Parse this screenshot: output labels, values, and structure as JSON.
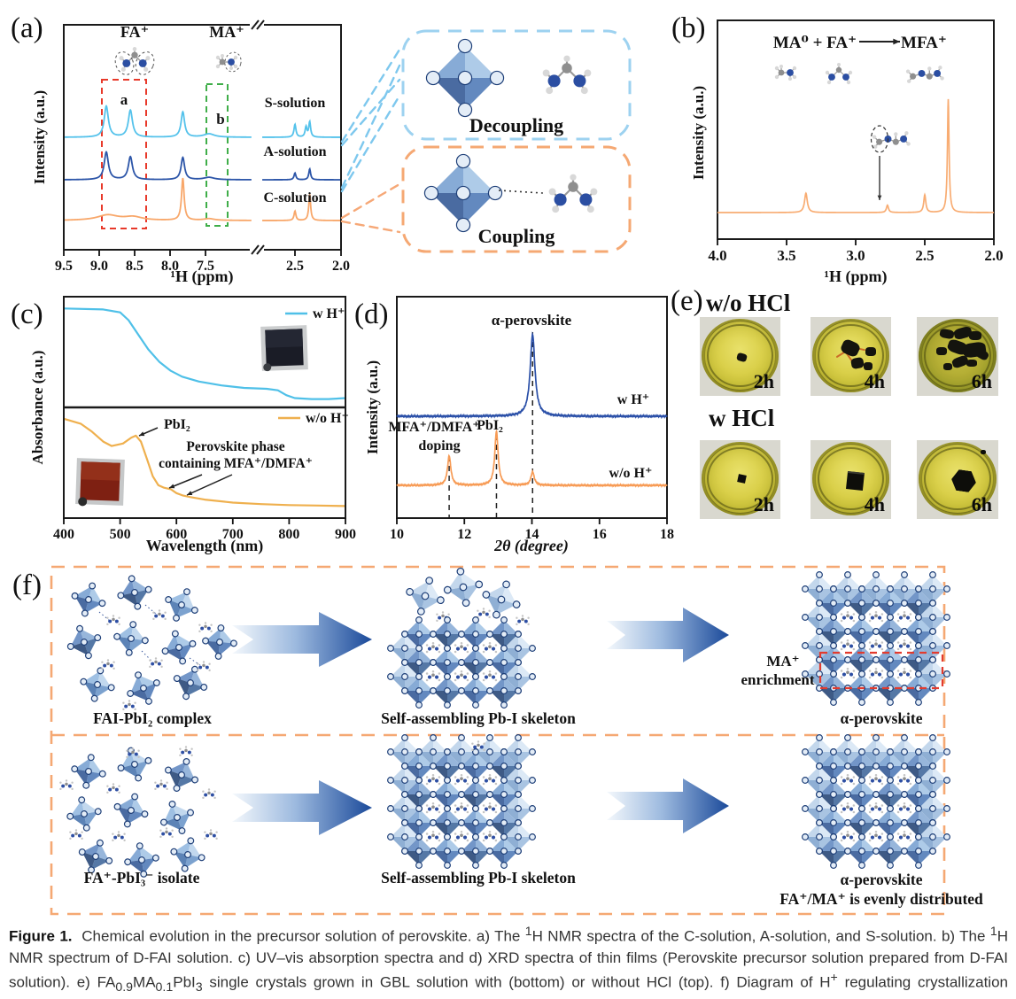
{
  "colors": {
    "s_solution": "#54C2EB",
    "a_solution": "#2C55A8",
    "c_solution": "#F8A76A",
    "nmr_b_trace": "#F8AC72",
    "uv_w_h": "#4FC0E8",
    "uv_wo_h": "#EFB04E",
    "xrd_w_h": "#2B50A8",
    "xrd_wo_h": "#F79B55",
    "decoupling_border": "#9DD2F0",
    "coupling_border": "#F5A873",
    "f_border": "#F5A873",
    "highlight_red": "#E8392A",
    "highlight_green": "#3FAE49",
    "arrow_blue": "#1B4A9A"
  },
  "panel_a": {
    "label": "(a)",
    "ylabel": "Intensity (a.u.)",
    "xlabel": "¹H (ppm)",
    "fa_label": "FA⁺",
    "ma_label": "MA⁺",
    "region_a_label": "a",
    "region_b_label": "b",
    "traces": [
      {
        "name": "S-solution"
      },
      {
        "name": "A-solution"
      },
      {
        "name": "C-solution"
      }
    ]
  },
  "coupling_diagram": {
    "decoupling_label": "Decoupling",
    "coupling_label": "Coupling"
  },
  "panel_b": {
    "label": "(b)",
    "reaction_left": "MA⁰  +  FA⁺",
    "reaction_right": "MFA⁺",
    "ylabel": "Intensity (a.u.)",
    "xlabel": "¹H (ppm)"
  },
  "panel_c": {
    "label": "(c)",
    "ylabel": "Absorbance (a.u.)",
    "xlabel": "Wavelength (nm)",
    "legend_top": "w H⁺",
    "legend_bottom": "w/o H⁺",
    "ann_pbi2": "PbI₂",
    "ann_phase_line1": "Perovskite phase",
    "ann_phase_line2": "containing MFA⁺/DMFA⁺"
  },
  "panel_d": {
    "label": "(d)",
    "ylabel": "Intensity (a.u.)",
    "xlabel": "2θ (degree)",
    "ann_alpha": "α-perovskite",
    "ann_doping_line1": "MFA⁺/DMFA⁺",
    "ann_doping_line2": "doping",
    "ann_pbi2": "PbI₂",
    "trace_top": "w H⁺",
    "trace_bottom": "w/o H⁺"
  },
  "panel_e": {
    "label": "(e)",
    "group_top": "w/o HCl",
    "group_bottom": "w HCl",
    "times": [
      "2h",
      "4h",
      "6h"
    ]
  },
  "panel_f": {
    "label": "(f)",
    "top_row": {
      "stage1": "FAI-PbI₂ complex",
      "stage2": "Self-assembling Pb-I skeleton",
      "stage3": "α-perovskite",
      "annotation_line1": "MA⁺",
      "annotation_line2": "enrichment"
    },
    "bottom_row": {
      "stage1": "FA⁺-PbI₃⁻ isolate",
      "stage2": "Self-assembling Pb-I skeleton",
      "stage3": "α-perovskite",
      "stage3_note": "FA⁺/MA⁺ is evenly distributed"
    }
  },
  "caption": {
    "rich_html": "<b>Figure 1.</b>&nbsp; Chemical evolution in the precursor solution of perovskite. a) The <sup>1</sup>H NMR spectra of the C-solution, A-solution, and S-solution. b) The <sup>1</sup>H NMR spectrum of D-FAI solution. c) UV–vis absorption spectra and d) XRD spectra of thin films (Perovskite precursor solution prepared from D-FAI solution). e) FA<sub>0.9</sub>MA<sub>0.1</sub>PbI<sub>3</sub> single crystals grown in GBL solution with (bottom) or without HCl (top). f) Diagram of H<sup>+</sup> regulating crystallization kinetics of FAMA perovskite."
  },
  "chart_data": [
    {
      "id": "a",
      "type": "line",
      "title": "1H NMR spectra of C/A/S solutions",
      "xlabel": "¹H (ppm)",
      "ylabel": "Intensity (a.u.)",
      "x_axis": {
        "segments": [
          [
            9.5,
            6.85
          ],
          [
            2.855,
            2.0
          ]
        ],
        "break": true
      },
      "xticks_left": [
        "9.5",
        "9.0",
        "8.5",
        "8.0",
        "7.5"
      ],
      "xticks_left_vals": [
        9.5,
        9.0,
        8.5,
        8.0,
        7.5
      ],
      "xticks_right": [
        "2.5",
        "2.0"
      ],
      "xticks_right_vals": [
        2.5,
        2.0
      ],
      "series": [
        {
          "name": "S-solution",
          "color": "#54C2EB",
          "peaks": [
            [
              8.9,
              0.92,
              0.035
            ],
            [
              8.56,
              0.8,
              0.035
            ],
            [
              7.82,
              0.75,
              0.03
            ],
            [
              7.45,
              0.1,
              0.09
            ],
            [
              2.5,
              0.38,
              0.013
            ],
            [
              2.38,
              0.3,
              0.012
            ],
            [
              2.34,
              0.45,
              0.012
            ]
          ]
        },
        {
          "name": "A-solution",
          "color": "#2C55A8",
          "peaks": [
            [
              8.9,
              0.82,
              0.035
            ],
            [
              8.56,
              0.68,
              0.035
            ],
            [
              7.82,
              0.66,
              0.03
            ],
            [
              7.45,
              0.07,
              0.09
            ],
            [
              2.5,
              0.2,
              0.012
            ],
            [
              2.34,
              0.32,
              0.012
            ]
          ]
        },
        {
          "name": "C-solution",
          "color": "#F8A76A",
          "peaks": [
            [
              8.88,
              0.16,
              0.18
            ],
            [
              8.52,
              0.1,
              0.15
            ],
            [
              7.82,
              1.25,
              0.022
            ],
            [
              7.45,
              0.05,
              0.09
            ],
            [
              2.5,
              0.28,
              0.012
            ],
            [
              2.34,
              0.78,
              0.012
            ]
          ]
        }
      ]
    },
    {
      "id": "b",
      "type": "line",
      "title": "1H NMR spectrum of D-FAI solution",
      "xlabel": "¹H (ppm)",
      "ylabel": "Intensity (a.u.)",
      "xticks": [
        "4.0",
        "3.5",
        "3.0",
        "2.5",
        "2.0"
      ],
      "xticks_vals": [
        4.0,
        3.5,
        3.0,
        2.5,
        2.0
      ],
      "series": [
        {
          "name": "D-FAI",
          "color": "#F8AC72",
          "peaks": [
            [
              3.36,
              0.17,
              0.012
            ],
            [
              2.77,
              0.065,
              0.009
            ],
            [
              2.5,
              0.155,
              0.009
            ],
            [
              2.33,
              1.0,
              0.007
            ]
          ]
        }
      ]
    },
    {
      "id": "c",
      "type": "line",
      "title": "UV-vis absorption spectra",
      "xlabel": "Wavelength (nm)",
      "ylabel": "Absorbance (a.u.)",
      "xticks": [
        "400",
        "500",
        "600",
        "700",
        "800",
        "900"
      ],
      "xticks_vals": [
        400,
        500,
        600,
        700,
        800,
        900
      ],
      "series": [
        {
          "name": "w H⁺",
          "color": "#4FC0E8",
          "panel": "top",
          "points": [
            [
              400,
              0.97
            ],
            [
              470,
              0.96
            ],
            [
              500,
              0.93
            ],
            [
              515,
              0.85
            ],
            [
              530,
              0.72
            ],
            [
              550,
              0.55
            ],
            [
              570,
              0.42
            ],
            [
              590,
              0.33
            ],
            [
              610,
              0.27
            ],
            [
              640,
              0.22
            ],
            [
              680,
              0.18
            ],
            [
              720,
              0.155
            ],
            [
              760,
              0.145
            ],
            [
              780,
              0.13
            ],
            [
              795,
              0.08
            ],
            [
              810,
              0.05
            ],
            [
              840,
              0.04
            ],
            [
              870,
              0.04
            ],
            [
              900,
              0.05
            ]
          ]
        },
        {
          "name": "w/o H⁺",
          "color": "#EFB04E",
          "panel": "bottom",
          "points": [
            [
              400,
              0.93
            ],
            [
              430,
              0.88
            ],
            [
              450,
              0.8
            ],
            [
              470,
              0.7
            ],
            [
              485,
              0.655
            ],
            [
              505,
              0.68
            ],
            [
              520,
              0.74
            ],
            [
              528,
              0.76
            ],
            [
              537,
              0.7
            ],
            [
              548,
              0.52
            ],
            [
              558,
              0.35
            ],
            [
              568,
              0.26
            ],
            [
              578,
              0.235
            ],
            [
              590,
              0.22
            ],
            [
              600,
              0.18
            ],
            [
              612,
              0.155
            ],
            [
              625,
              0.14
            ],
            [
              650,
              0.115
            ],
            [
              700,
              0.085
            ],
            [
              750,
              0.07
            ],
            [
              800,
              0.06
            ],
            [
              850,
              0.055
            ],
            [
              900,
              0.05
            ]
          ]
        }
      ]
    },
    {
      "id": "d",
      "type": "line",
      "title": "XRD spectra of thin films",
      "xlabel": "2θ (degree)",
      "ylabel": "Intensity (a.u.)",
      "xticks": [
        "10",
        "12",
        "14",
        "16",
        "18"
      ],
      "xticks_vals": [
        10,
        12,
        14,
        16,
        18
      ],
      "guides": [
        11.55,
        12.95,
        14.02
      ],
      "series": [
        {
          "name": "w H⁺",
          "color": "#2B50A8",
          "peaks": [
            [
              14.02,
              92,
              0.085
            ]
          ]
        },
        {
          "name": "w/o H⁺",
          "color": "#F79B55",
          "peaks": [
            [
              11.55,
              33,
              0.06
            ],
            [
              12.95,
              61,
              0.06
            ],
            [
              14.02,
              15,
              0.06
            ]
          ]
        }
      ]
    }
  ]
}
